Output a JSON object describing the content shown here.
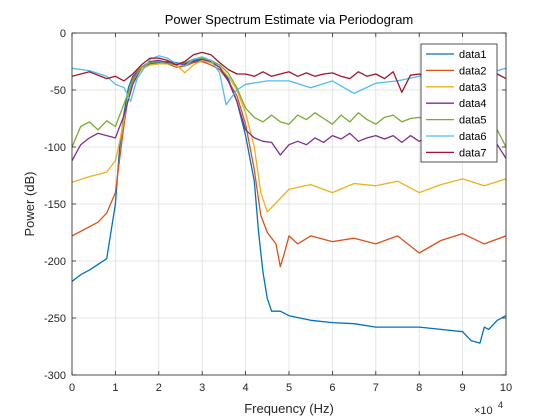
{
  "chart_data": {
    "type": "line",
    "title": "Power Spectrum Estimate via Periodogram",
    "xlabel": "Frequency (Hz)",
    "ylabel": "Power (dB)",
    "xlim": [
      0,
      10
    ],
    "ylim": [
      -300,
      0
    ],
    "x_multiplier_label": "×10",
    "x_multiplier_exponent": "4",
    "xticks": [
      0,
      1,
      2,
      3,
      4,
      5,
      6,
      7,
      8,
      9,
      10
    ],
    "xtick_labels": [
      "0",
      "1",
      "2",
      "3",
      "4",
      "5",
      "6",
      "7",
      "8",
      "9",
      "10"
    ],
    "yticks": [
      0,
      -50,
      -100,
      -150,
      -200,
      -250,
      -300
    ],
    "ytick_labels": [
      "0",
      "-50",
      "-100",
      "-150",
      "-200",
      "-250",
      "-300"
    ],
    "grid": true,
    "legend_position": "top-right",
    "series": [
      {
        "name": "data1",
        "color": "#0072BD",
        "x": [
          0,
          0.2,
          0.4,
          0.6,
          0.8,
          1.0,
          1.1,
          1.2,
          1.3,
          1.4,
          1.6,
          1.8,
          2.0,
          2.2,
          2.4,
          2.6,
          2.8,
          3.0,
          3.2,
          3.4,
          3.6,
          3.8,
          4.0,
          4.2,
          4.3,
          4.4,
          4.5,
          4.6,
          4.8,
          5.0,
          5.5,
          6.0,
          6.5,
          7.0,
          7.5,
          8.0,
          8.5,
          9.0,
          9.2,
          9.4,
          9.5,
          9.6,
          9.8,
          10.0
        ],
        "y": [
          -218,
          -212,
          -208,
          -203,
          -198,
          -150,
          -100,
          -70,
          -48,
          -38,
          -30,
          -27,
          -26,
          -25,
          -26,
          -28,
          -25,
          -24,
          -26,
          -30,
          -40,
          -60,
          -90,
          -130,
          -175,
          -210,
          -233,
          -244,
          -244,
          -248,
          -252,
          -254,
          -255,
          -258,
          -258,
          -258,
          -260,
          -262,
          -270,
          -272,
          -258,
          -260,
          -252,
          -248
        ]
      },
      {
        "name": "data2",
        "color": "#D95319",
        "x": [
          0,
          0.3,
          0.6,
          0.8,
          1.0,
          1.1,
          1.2,
          1.3,
          1.4,
          1.6,
          1.8,
          2.0,
          2.2,
          2.4,
          2.6,
          2.8,
          3.0,
          3.2,
          3.4,
          3.6,
          3.8,
          4.0,
          4.2,
          4.35,
          4.5,
          4.7,
          4.8,
          4.9,
          5.0,
          5.2,
          5.5,
          6.0,
          6.5,
          7.0,
          7.5,
          8.0,
          8.5,
          9.0,
          9.5,
          10.0
        ],
        "y": [
          -178,
          -172,
          -166,
          -158,
          -140,
          -110,
          -80,
          -55,
          -40,
          -30,
          -28,
          -27,
          -27,
          -30,
          -29,
          -26,
          -25,
          -28,
          -32,
          -42,
          -55,
          -80,
          -120,
          -160,
          -175,
          -185,
          -205,
          -192,
          -178,
          -185,
          -178,
          -183,
          -180,
          -185,
          -178,
          -193,
          -182,
          -176,
          -185,
          -178
        ]
      },
      {
        "name": "data3",
        "color": "#EDB120",
        "x": [
          0,
          0.4,
          0.8,
          1.0,
          1.1,
          1.2,
          1.3,
          1.4,
          1.6,
          1.8,
          2.0,
          2.2,
          2.4,
          2.6,
          2.8,
          3.0,
          3.2,
          3.4,
          3.6,
          3.8,
          4.0,
          4.2,
          4.35,
          4.5,
          5.0,
          5.5,
          6.0,
          6.5,
          7.0,
          7.5,
          8.0,
          8.5,
          9.0,
          9.5,
          10.0
        ],
        "y": [
          -131,
          -126,
          -122,
          -112,
          -95,
          -75,
          -55,
          -42,
          -32,
          -28,
          -27,
          -27,
          -28,
          -35,
          -28,
          -24,
          -26,
          -30,
          -38,
          -50,
          -70,
          -100,
          -140,
          -157,
          -137,
          -133,
          -140,
          -132,
          -134,
          -130,
          -140,
          -133,
          -128,
          -134,
          -128
        ]
      },
      {
        "name": "data4",
        "color": "#7E2F8E",
        "x": [
          0,
          0.2,
          0.4,
          0.6,
          0.8,
          1.0,
          1.2,
          1.4,
          1.6,
          1.8,
          2.0,
          2.2,
          2.4,
          2.6,
          2.8,
          3.0,
          3.2,
          3.4,
          3.6,
          3.8,
          4.0,
          4.2,
          4.4,
          4.6,
          4.8,
          5.0,
          5.2,
          5.4,
          5.6,
          5.8,
          6.0,
          6.2,
          6.4,
          6.6,
          6.8,
          7.0,
          7.2,
          7.4,
          7.6,
          7.8,
          8.0,
          8.2,
          8.4,
          8.6,
          8.8,
          9.0,
          9.2,
          9.4,
          9.6,
          9.8,
          10.0
        ],
        "y": [
          -112,
          -98,
          -92,
          -88,
          -90,
          -92,
          -72,
          -45,
          -30,
          -25,
          -24,
          -26,
          -28,
          -27,
          -24,
          -23,
          -25,
          -30,
          -42,
          -60,
          -85,
          -92,
          -95,
          -96,
          -107,
          -98,
          -95,
          -98,
          -92,
          -96,
          -90,
          -93,
          -88,
          -95,
          -92,
          -90,
          -93,
          -90,
          -96,
          -90,
          -95,
          -91,
          -94,
          -96,
          -90,
          -93,
          -95,
          -90,
          -96,
          -98,
          -110
        ]
      },
      {
        "name": "data5",
        "color": "#77AC30",
        "x": [
          0,
          0.2,
          0.4,
          0.6,
          0.8,
          1.0,
          1.2,
          1.4,
          1.6,
          1.8,
          2.0,
          2.2,
          2.4,
          2.6,
          2.8,
          3.0,
          3.2,
          3.4,
          3.6,
          3.8,
          4.0,
          4.2,
          4.4,
          4.6,
          4.8,
          5.0,
          5.2,
          5.4,
          5.6,
          5.8,
          6.0,
          6.2,
          6.4,
          6.6,
          6.8,
          7.0,
          7.2,
          7.4,
          7.6,
          7.8,
          8.0,
          8.2,
          8.4,
          8.6,
          8.8,
          9.0,
          9.2,
          9.4,
          9.6,
          9.8,
          10.0
        ],
        "y": [
          -100,
          -82,
          -78,
          -85,
          -77,
          -82,
          -62,
          -42,
          -30,
          -26,
          -25,
          -27,
          -27,
          -26,
          -23,
          -22,
          -24,
          -28,
          -35,
          -48,
          -66,
          -74,
          -78,
          -72,
          -78,
          -80,
          -72,
          -76,
          -70,
          -75,
          -80,
          -72,
          -78,
          -70,
          -76,
          -80,
          -74,
          -72,
          -78,
          -75,
          -74,
          -76,
          -70,
          -78,
          -74,
          -75,
          -72,
          -80,
          -78,
          -85,
          -100
        ]
      },
      {
        "name": "data6",
        "color": "#4DBEEE",
        "x": [
          0,
          0.4,
          0.8,
          1.0,
          1.2,
          1.35,
          1.5,
          1.8,
          2.0,
          2.2,
          2.4,
          2.6,
          2.8,
          3.0,
          3.2,
          3.4,
          3.55,
          3.8,
          4.0,
          4.5,
          5.0,
          5.5,
          6.0,
          6.5,
          7.0,
          7.5,
          8.0,
          8.5,
          9.0,
          9.5,
          10.0
        ],
        "y": [
          -31,
          -33,
          -38,
          -45,
          -48,
          -60,
          -40,
          -23,
          -20,
          -22,
          -27,
          -29,
          -23,
          -21,
          -24,
          -35,
          -63,
          -50,
          -45,
          -42,
          -42,
          -48,
          -42,
          -53,
          -44,
          -42,
          -38,
          -40,
          -34,
          -36,
          -31
        ]
      },
      {
        "name": "data7",
        "color": "#A2142F",
        "x": [
          0,
          0.4,
          0.8,
          1.0,
          1.2,
          1.4,
          1.6,
          1.8,
          2.0,
          2.2,
          2.4,
          2.6,
          2.8,
          3.0,
          3.2,
          3.4,
          3.6,
          3.8,
          4.0,
          4.2,
          4.4,
          4.6,
          4.8,
          5.0,
          5.2,
          5.4,
          5.6,
          5.8,
          6.0,
          6.2,
          6.4,
          6.6,
          6.8,
          7.0,
          7.2,
          7.4,
          7.6,
          7.8,
          8.0,
          8.2,
          8.4,
          8.6,
          8.8,
          9.0,
          9.2,
          9.4,
          9.6,
          9.8,
          10.0
        ],
        "y": [
          -38,
          -34,
          -40,
          -38,
          -42,
          -36,
          -28,
          -22,
          -22,
          -24,
          -28,
          -25,
          -19,
          -17,
          -19,
          -26,
          -32,
          -36,
          -36,
          -38,
          -34,
          -38,
          -36,
          -34,
          -38,
          -35,
          -38,
          -36,
          -35,
          -38,
          -40,
          -34,
          -38,
          -36,
          -40,
          -34,
          -52,
          -37,
          -36,
          -40,
          -35,
          -38,
          -36,
          -38,
          -34,
          -36,
          -38,
          -36,
          -40
        ]
      }
    ]
  }
}
